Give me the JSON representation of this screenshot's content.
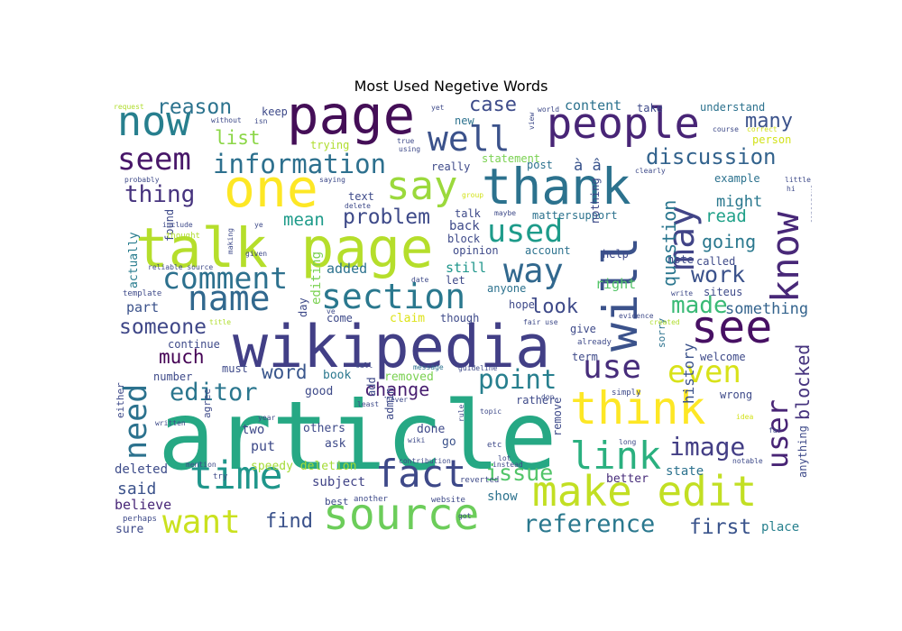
{
  "chart_data": {
    "type": "wordcloud",
    "title": "Most Used Negetive Words",
    "words": [
      {
        "text": "article",
        "weight": 100,
        "color": "#26a884"
      },
      {
        "text": "wikipedia",
        "weight": 62,
        "color": "#423f86"
      },
      {
        "text": "talk page",
        "weight": 58,
        "color": "#b5de2b"
      },
      {
        "text": "page",
        "weight": 56,
        "color": "#440e57"
      },
      {
        "text": "one",
        "weight": 55,
        "color": "#fde725"
      },
      {
        "text": "thank",
        "weight": 52,
        "color": "#2c728e"
      },
      {
        "text": "will",
        "weight": 50,
        "color": "#3b528b",
        "vertical": true
      },
      {
        "text": "think",
        "weight": 48,
        "color": "#fde725"
      },
      {
        "text": "see",
        "weight": 48,
        "color": "#471063"
      },
      {
        "text": "source",
        "weight": 46,
        "color": "#6ccd5a"
      },
      {
        "text": "people",
        "weight": 45,
        "color": "#482576"
      },
      {
        "text": "make edit",
        "weight": 44,
        "color": "#c2df23"
      },
      {
        "text": "now",
        "weight": 43,
        "color": "#277f8e"
      },
      {
        "text": "say",
        "weight": 42,
        "color": "#9bd93c"
      },
      {
        "text": "time",
        "weight": 41,
        "color": "#1f968b"
      },
      {
        "text": "fact",
        "weight": 40,
        "color": "#3e4989"
      },
      {
        "text": "link",
        "weight": 40,
        "color": "#2ab07f"
      },
      {
        "text": "know",
        "weight": 40,
        "color": "#482878",
        "vertical": true
      },
      {
        "text": "may",
        "weight": 38,
        "color": "#414487",
        "vertical": true
      },
      {
        "text": "well",
        "weight": 36,
        "color": "#3b528b"
      },
      {
        "text": "name",
        "weight": 36,
        "color": "#31688e"
      },
      {
        "text": "section",
        "weight": 36,
        "color": "#2a788e"
      },
      {
        "text": "way",
        "weight": 35,
        "color": "#31688e"
      },
      {
        "text": "use",
        "weight": 34,
        "color": "#472d7b"
      },
      {
        "text": "want",
        "weight": 34,
        "color": "#cae11f"
      },
      {
        "text": "need",
        "weight": 33,
        "color": "#2c728e",
        "vertical": true
      },
      {
        "text": "used",
        "weight": 33,
        "color": "#1e9b8a"
      },
      {
        "text": "seem",
        "weight": 32,
        "color": "#481769"
      },
      {
        "text": "even",
        "weight": 32,
        "color": "#d8e219"
      },
      {
        "text": "comment",
        "weight": 31,
        "color": "#2d718e"
      },
      {
        "text": "user",
        "weight": 30,
        "color": "#482475",
        "vertical": true
      },
      {
        "text": "information",
        "weight": 28,
        "color": "#2d708e"
      },
      {
        "text": "point",
        "weight": 28,
        "color": "#277f8e"
      },
      {
        "text": "image",
        "weight": 27,
        "color": "#433e85"
      },
      {
        "text": "reference",
        "weight": 26,
        "color": "#2a788e"
      },
      {
        "text": "editor",
        "weight": 26,
        "color": "#2a768e"
      },
      {
        "text": "thing",
        "weight": 25,
        "color": "#46337e"
      },
      {
        "text": "made",
        "weight": 25,
        "color": "#3aba76"
      },
      {
        "text": "issue",
        "weight": 24,
        "color": "#52c569"
      },
      {
        "text": "work",
        "weight": 24,
        "color": "#3b528b"
      },
      {
        "text": "discussion",
        "weight": 23,
        "color": "#33638d"
      },
      {
        "text": "someone",
        "weight": 22,
        "color": "#3f4788"
      },
      {
        "text": "reason",
        "weight": 22,
        "color": "#2c738e"
      },
      {
        "text": "problem",
        "weight": 22,
        "color": "#3e4a89"
      },
      {
        "text": "first",
        "weight": 22,
        "color": "#3a548c"
      },
      {
        "text": "find",
        "weight": 21,
        "color": "#3b528b"
      },
      {
        "text": "look",
        "weight": 21,
        "color": "#3e4a89"
      },
      {
        "text": "case",
        "weight": 21,
        "color": "#3e4c8a"
      },
      {
        "text": "many",
        "weight": 21,
        "color": "#3b528b"
      },
      {
        "text": "much",
        "weight": 20,
        "color": "#440154"
      },
      {
        "text": "word",
        "weight": 20,
        "color": "#39568c"
      },
      {
        "text": "list",
        "weight": 20,
        "color": "#8bd646"
      },
      {
        "text": "going",
        "weight": 19,
        "color": "#2a788e"
      },
      {
        "text": "question",
        "weight": 19,
        "color": "#2a768e",
        "vertical": true
      },
      {
        "text": "blocked",
        "weight": 19,
        "color": "#46337e",
        "vertical": true
      },
      {
        "text": "change",
        "weight": 19,
        "color": "#481f70"
      },
      {
        "text": "mean",
        "weight": 18,
        "color": "#1e9b8a"
      },
      {
        "text": "read",
        "weight": 18,
        "color": "#1fa088"
      },
      {
        "text": "said",
        "weight": 17,
        "color": "#3b528b"
      },
      {
        "text": "something",
        "weight": 16,
        "color": "#33638d"
      },
      {
        "text": "might",
        "weight": 16,
        "color": "#2a788e"
      },
      {
        "text": "à â",
        "weight": 16,
        "color": "#3a548c"
      },
      {
        "text": "history",
        "weight": 15,
        "color": "#3b528b",
        "vertical": true
      },
      {
        "text": "part",
        "weight": 14,
        "color": "#3b528b"
      },
      {
        "text": "believe",
        "weight": 14,
        "color": "#482677"
      },
      {
        "text": "right",
        "weight": 14,
        "color": "#54c568"
      },
      {
        "text": "added",
        "weight": 14,
        "color": "#2c728e"
      },
      {
        "text": "still",
        "weight": 14,
        "color": "#1f968b"
      },
      {
        "text": "content",
        "weight": 14,
        "color": "#2c728e"
      },
      {
        "text": "put",
        "weight": 14,
        "color": "#3e4a89"
      },
      {
        "text": "two",
        "weight": 13,
        "color": "#3e4989"
      },
      {
        "text": "back",
        "weight": 13,
        "color": "#3e4a89"
      },
      {
        "text": "subject",
        "weight": 13,
        "color": "#414487"
      },
      {
        "text": "show",
        "weight": 13,
        "color": "#2c728e"
      },
      {
        "text": "state",
        "weight": 13,
        "color": "#2c728e"
      },
      {
        "text": "place",
        "weight": 13,
        "color": "#27808e"
      },
      {
        "text": "editing",
        "weight": 13,
        "color": "#7ad151",
        "vertical": true
      },
      {
        "text": "deleted",
        "weight": 13,
        "color": "#3e4c8a"
      },
      {
        "text": "actually",
        "weight": 12,
        "color": "#287c8e",
        "vertical": true
      },
      {
        "text": "sure",
        "weight": 12,
        "color": "#3e4a89"
      },
      {
        "text": "better",
        "weight": 12,
        "color": "#472c7a"
      },
      {
        "text": "speedy deletion",
        "weight": 12,
        "color": "#a5db36"
      },
      {
        "text": "others",
        "weight": 12,
        "color": "#3e4a89"
      },
      {
        "text": "done",
        "weight": 12,
        "color": "#3e4989"
      },
      {
        "text": "go",
        "weight": 12,
        "color": "#3b528b"
      },
      {
        "text": "good",
        "weight": 12,
        "color": "#3e4a89"
      },
      {
        "text": "ask",
        "weight": 12,
        "color": "#3e4a89"
      },
      {
        "text": "removed",
        "weight": 12,
        "color": "#7ad151"
      },
      {
        "text": "claim",
        "weight": 12,
        "color": "#dde318"
      },
      {
        "text": "book",
        "weight": 12,
        "color": "#2a788e"
      },
      {
        "text": "must",
        "weight": 11,
        "color": "#3e4a89"
      },
      {
        "text": "really",
        "weight": 11,
        "color": "#3e4a89"
      },
      {
        "text": "keep",
        "weight": 11,
        "color": "#3e4a89"
      },
      {
        "text": "new",
        "weight": 11,
        "color": "#2c728e"
      },
      {
        "text": "post",
        "weight": 11,
        "color": "#2c728e"
      },
      {
        "text": "take",
        "weight": 11,
        "color": "#3e4a89"
      },
      {
        "text": "understand",
        "weight": 11,
        "color": "#2c728e"
      },
      {
        "text": "person",
        "weight": 11,
        "color": "#d2e21b"
      },
      {
        "text": "example",
        "weight": 11,
        "color": "#2c728e"
      },
      {
        "text": "wrong",
        "weight": 11,
        "color": "#3e4a89"
      },
      {
        "text": "trying",
        "weight": 11,
        "color": "#b0dd2f"
      },
      {
        "text": "statement",
        "weight": 11,
        "color": "#7ad151"
      },
      {
        "text": "text",
        "weight": 11,
        "color": "#3e4a89"
      },
      {
        "text": "anyone",
        "weight": 11,
        "color": "#2c728e"
      },
      {
        "text": "hope",
        "weight": 11,
        "color": "#3e4a89"
      },
      {
        "text": "rather",
        "weight": 11,
        "color": "#3e4a89"
      },
      {
        "text": "though",
        "weight": 11,
        "color": "#3e4a89"
      },
      {
        "text": "continue",
        "weight": 11,
        "color": "#3e4a89"
      },
      {
        "text": "number",
        "weight": 11,
        "color": "#3e4a89"
      },
      {
        "text": "come",
        "weight": 11,
        "color": "#3e4a89"
      },
      {
        "text": "talk",
        "weight": 11,
        "color": "#3e4a89"
      },
      {
        "text": "block",
        "weight": 11,
        "color": "#3e4a89"
      },
      {
        "text": "matter",
        "weight": 11,
        "color": "#2c728e"
      },
      {
        "text": "support",
        "weight": 11,
        "color": "#2c728e"
      },
      {
        "text": "called",
        "weight": 11,
        "color": "#3e4a89"
      },
      {
        "text": "note",
        "weight": 11,
        "color": "#3e4a89"
      },
      {
        "text": "let",
        "weight": 11,
        "color": "#3e4a89"
      },
      {
        "text": "give",
        "weight": 11,
        "color": "#3e4a89"
      },
      {
        "text": "opinion",
        "weight": 11,
        "color": "#3e4a89"
      },
      {
        "text": "help",
        "weight": 11,
        "color": "#3e4a89"
      },
      {
        "text": "account",
        "weight": 11,
        "color": "#2c728e"
      },
      {
        "text": "welcome",
        "weight": 11,
        "color": "#3e4a89"
      },
      {
        "text": "term",
        "weight": 11,
        "color": "#3e4a89"
      },
      {
        "text": "siteus",
        "weight": 11,
        "color": "#3e4a89"
      },
      {
        "text": "anything",
        "weight": 11,
        "color": "#3e4a89",
        "vertical": true
      },
      {
        "text": "found",
        "weight": 11,
        "color": "#3e4a89",
        "vertical": true
      },
      {
        "text": "day",
        "weight": 11,
        "color": "#3e4a89",
        "vertical": true
      },
      {
        "text": "nothing",
        "weight": 11,
        "color": "#3e4a89",
        "vertical": true
      },
      {
        "text": "remove",
        "weight": 11,
        "color": "#3e4a89",
        "vertical": true
      },
      {
        "text": "admin",
        "weight": 11,
        "color": "#3e4a89",
        "vertical": true
      },
      {
        "text": "add",
        "weight": 11,
        "color": "#3e4a89",
        "vertical": true
      },
      {
        "text": "either",
        "weight": 10,
        "color": "#3e4a89",
        "vertical": true
      },
      {
        "text": "agree",
        "weight": 10,
        "color": "#3e4a89",
        "vertical": true
      },
      {
        "text": "sorry",
        "weight": 10,
        "color": "#2c728e",
        "vertical": true
      },
      {
        "text": "best",
        "weight": 10,
        "color": "#3e4a89"
      },
      {
        "text": "simply",
        "weight": 9,
        "color": "#3e4a89"
      },
      {
        "text": "template",
        "weight": 9,
        "color": "#3e4a89"
      },
      {
        "text": "perhaps",
        "weight": 9,
        "color": "#3e4a89"
      },
      {
        "text": "try",
        "weight": 9,
        "color": "#3e4a89"
      },
      {
        "text": "thought",
        "weight": 9,
        "color": "#b0dd2f"
      },
      {
        "text": "already",
        "weight": 9,
        "color": "#3e4a89"
      },
      {
        "text": "etc",
        "weight": 9,
        "color": "#3e4a89"
      },
      {
        "text": "reverted",
        "weight": 9,
        "color": "#3e4a89"
      },
      {
        "text": "website",
        "weight": 9,
        "color": "#3e4a89"
      },
      {
        "text": "another",
        "weight": 9,
        "color": "#3e4a89"
      },
      {
        "text": "instead",
        "weight": 8,
        "color": "#3e4a89"
      },
      {
        "text": "lot",
        "weight": 8,
        "color": "#3e4a89"
      },
      {
        "text": "least",
        "weight": 8,
        "color": "#3e4a89"
      },
      {
        "text": "message",
        "weight": 8,
        "color": "#2c728e"
      },
      {
        "text": "guideline",
        "weight": 8,
        "color": "#3e4a89"
      },
      {
        "text": "maybe",
        "weight": 8,
        "color": "#3e4a89"
      },
      {
        "text": "view",
        "weight": 8,
        "color": "#3e4a89",
        "vertical": true
      },
      {
        "text": "year",
        "weight": 8,
        "color": "#3e4a89"
      },
      {
        "text": "mention",
        "weight": 8,
        "color": "#3e4a89"
      },
      {
        "text": "created",
        "weight": 8,
        "color": "#b0dd2f"
      },
      {
        "text": "evidence",
        "weight": 7,
        "color": "#3e4a89"
      },
      {
        "text": "fair use",
        "weight": 8,
        "color": "#3e4a89"
      },
      {
        "text": "title",
        "weight": 7,
        "color": "#b0dd2f"
      },
      {
        "text": "write",
        "weight": 7,
        "color": "#3e4a89"
      },
      {
        "text": "idea",
        "weight": 7,
        "color": "#d2e21b"
      },
      {
        "text": "far",
        "weight": 7,
        "color": "#3e4a89"
      },
      {
        "text": "long",
        "weight": 7,
        "color": "#3e4a89"
      },
      {
        "text": "notable",
        "weight": 7,
        "color": "#3e4a89"
      },
      {
        "text": "include",
        "weight": 7,
        "color": "#3e4a89"
      },
      {
        "text": "given",
        "weight": 7,
        "color": "#3e4a89"
      },
      {
        "text": "reliable source",
        "weight": 7,
        "color": "#3e4a89"
      },
      {
        "text": "ye",
        "weight": 7,
        "color": "#3e4a89"
      },
      {
        "text": "making",
        "weight": 6,
        "color": "#3e4a89",
        "vertical": true
      },
      {
        "text": "probably",
        "weight": 7,
        "color": "#3e4a89"
      },
      {
        "text": "saying",
        "weight": 7,
        "color": "#3e4a89"
      },
      {
        "text": "delete",
        "weight": 7,
        "color": "#3e4a89"
      },
      {
        "text": "true",
        "weight": 6,
        "color": "#3e4a89"
      },
      {
        "text": "using",
        "weight": 6,
        "color": "#3e4a89"
      },
      {
        "text": "isn",
        "weight": 6,
        "color": "#3e4a89"
      },
      {
        "text": "without",
        "weight": 6,
        "color": "#3e4a89"
      },
      {
        "text": "request",
        "weight": 6,
        "color": "#b0dd2f"
      },
      {
        "text": "yet",
        "weight": 6,
        "color": "#3e4a89"
      },
      {
        "text": "group",
        "weight": 6,
        "color": "#d2e21b"
      },
      {
        "text": "world",
        "weight": 6,
        "color": "#3e4a89"
      },
      {
        "text": "clearly",
        "weight": 6,
        "color": "#3e4a89"
      },
      {
        "text": "course",
        "weight": 6,
        "color": "#3e4a89"
      },
      {
        "text": "correct",
        "weight": 6,
        "color": "#d2e21b"
      },
      {
        "text": "hi",
        "weight": 6,
        "color": "#3e4a89"
      },
      {
        "text": "little",
        "weight": 6,
        "color": "#3e4a89"
      },
      {
        "text": "consensus",
        "weight": 6,
        "color": "#3e4a89",
        "vertical": true
      },
      {
        "text": "date",
        "weight": 6,
        "color": "#3e4a89"
      },
      {
        "text": "call",
        "weight": 6,
        "color": "#3e4a89"
      },
      {
        "text": "never",
        "weight": 6,
        "color": "#3e4a89"
      },
      {
        "text": "topic",
        "weight": 6,
        "color": "#3e4a89"
      },
      {
        "text": "wiki",
        "weight": 6,
        "color": "#3e4a89"
      },
      {
        "text": "rule",
        "weight": 6,
        "color": "#3e4a89",
        "vertical": true
      },
      {
        "text": "got",
        "weight": 6,
        "color": "#3e4a89"
      },
      {
        "text": "written",
        "weight": 6,
        "color": "#3e4a89"
      },
      {
        "text": "contribution",
        "weight": 6,
        "color": "#3e4a89"
      },
      {
        "text": "ve",
        "weight": 6,
        "color": "#3e4a89"
      },
      {
        "text": "don",
        "weight": 8,
        "color": "#3e4a89"
      }
    ]
  }
}
